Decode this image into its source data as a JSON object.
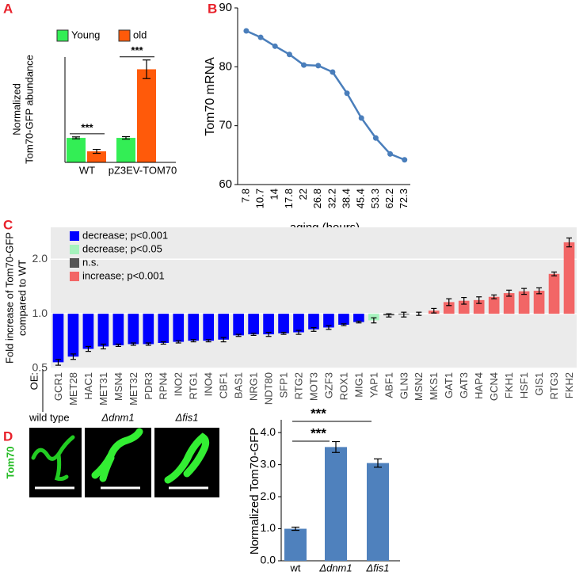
{
  "chart_data": [
    {
      "type": "bar",
      "panel_label": "A",
      "ylabel": [
        "Normalized",
        "Tom70-GFP abundance"
      ],
      "categories": [
        "WT",
        "pZ3EV-TOM70"
      ],
      "ylim": [
        0,
        4.3
      ],
      "series": [
        {
          "name": "Young",
          "color": "#33ee55",
          "values": [
            1.0,
            1.0
          ],
          "errors": [
            0.04,
            0.05
          ]
        },
        {
          "name": "old",
          "color": "#ff5a0a",
          "values": [
            0.45,
            3.8
          ],
          "errors": [
            0.08,
            0.38
          ]
        }
      ],
      "annotations": [
        "***",
        "***"
      ]
    },
    {
      "type": "line",
      "panel_label": "B",
      "ylabel": "Tom70 mRNA",
      "xlabel": "aging (hours)",
      "color": "#4a7ebb",
      "categories": [
        "7.8",
        "10.7",
        "14",
        "17.8",
        "22",
        "26.8",
        "32.2",
        "38.4",
        "45.4",
        "53.3",
        "62.2",
        "72.3"
      ],
      "values": [
        86.1,
        85.0,
        83.5,
        82.1,
        80.3,
        80.2,
        79.1,
        75.5,
        71.3,
        67.9,
        65.2,
        64.2
      ],
      "ylim": [
        60,
        90
      ],
      "yticks": [
        60,
        70,
        80,
        90
      ]
    },
    {
      "type": "bar",
      "panel_label": "C",
      "ylabel": [
        "Fold increase of Tom70-GFP",
        "compared to WT"
      ],
      "axis_prefix": "OE:",
      "yscale": "log",
      "ylim": [
        0.5,
        3.0
      ],
      "baseline": 1.0,
      "yticks": [
        {
          "value": 0.5,
          "label": "0.5"
        },
        {
          "value": 1,
          "label": "1.0"
        },
        {
          "value": 2,
          "label": "2.0"
        }
      ],
      "legend": [
        {
          "label": "decrease; p<0.001",
          "color": "#0000ff"
        },
        {
          "label": "decrease; p<0.05",
          "color": "#a6f2bd"
        },
        {
          "label": "n.s.",
          "color": "#555555"
        },
        {
          "label": "increase; p<0.001",
          "color": "#f26666"
        }
      ],
      "categories": [
        "GCR1",
        "MET28",
        "HAC1",
        "MET31",
        "MSN4",
        "MET32",
        "PDR3",
        "RPN4",
        "INO2",
        "RTG1",
        "INO4",
        "CBF1",
        "BAS1",
        "NRG1",
        "NDT80",
        "SFP1",
        "RTG2",
        "MOT3",
        "GZF3",
        "ROX1",
        "MIG1",
        "YAP1",
        "ABF1",
        "GLN3",
        "MSN2",
        "MKS1",
        "GAT1",
        "GAT3",
        "HAP4",
        "GCN4",
        "FKH1",
        "HSF1",
        "GIS1",
        "RTG3",
        "FKH2"
      ],
      "values": [
        0.54,
        0.58,
        0.64,
        0.66,
        0.67,
        0.68,
        0.68,
        0.69,
        0.7,
        0.71,
        0.71,
        0.72,
        0.76,
        0.77,
        0.77,
        0.78,
        0.79,
        0.82,
        0.84,
        0.87,
        0.9,
        0.92,
        0.98,
        0.99,
        1.0,
        1.04,
        1.16,
        1.18,
        1.19,
        1.24,
        1.3,
        1.33,
        1.34,
        1.66,
        2.48
      ],
      "errors": [
        0.02,
        0.02,
        0.02,
        0.02,
        0.01,
        0.01,
        0.01,
        0.01,
        0.01,
        0.01,
        0.01,
        0.02,
        0.01,
        0.01,
        0.02,
        0.01,
        0.02,
        0.02,
        0.02,
        0.01,
        0.01,
        0.03,
        0.02,
        0.03,
        0.02,
        0.03,
        0.05,
        0.05,
        0.05,
        0.03,
        0.05,
        0.05,
        0.05,
        0.04,
        0.14
      ],
      "colors": [
        "#0000ff",
        "#0000ff",
        "#0000ff",
        "#0000ff",
        "#0000ff",
        "#0000ff",
        "#0000ff",
        "#0000ff",
        "#0000ff",
        "#0000ff",
        "#0000ff",
        "#0000ff",
        "#0000ff",
        "#0000ff",
        "#0000ff",
        "#0000ff",
        "#0000ff",
        "#0000ff",
        "#0000ff",
        "#0000ff",
        "#0000ff",
        "#a6f2bd",
        "#555555",
        "#555555",
        "#555555",
        "#f26666",
        "#f26666",
        "#f26666",
        "#f26666",
        "#f26666",
        "#f26666",
        "#f26666",
        "#f26666",
        "#f26666",
        "#f26666"
      ]
    },
    {
      "type": "bar",
      "panel_label": "D",
      "ylabel": "Normalized Tom70-GFP",
      "color": "#4f81bd",
      "categories": [
        "wt",
        "Δdnm1",
        "Δfis1"
      ],
      "values": [
        1.0,
        3.55,
        3.05
      ],
      "errors": [
        0.05,
        0.17,
        0.13
      ],
      "ylim": [
        0,
        4.4
      ],
      "yticks": [
        {
          "value": 0,
          "label": "0.0"
        },
        {
          "value": 1,
          "label": "1.0"
        },
        {
          "value": 2,
          "label": "2.0"
        },
        {
          "value": 3,
          "label": "3.0"
        },
        {
          "value": 4,
          "label": "4.0"
        }
      ],
      "annotations": [
        "***",
        "***"
      ]
    }
  ],
  "images": {
    "row_label": "Tom70",
    "panels": [
      "wild type",
      "Δdnm1",
      "Δfis1"
    ]
  }
}
